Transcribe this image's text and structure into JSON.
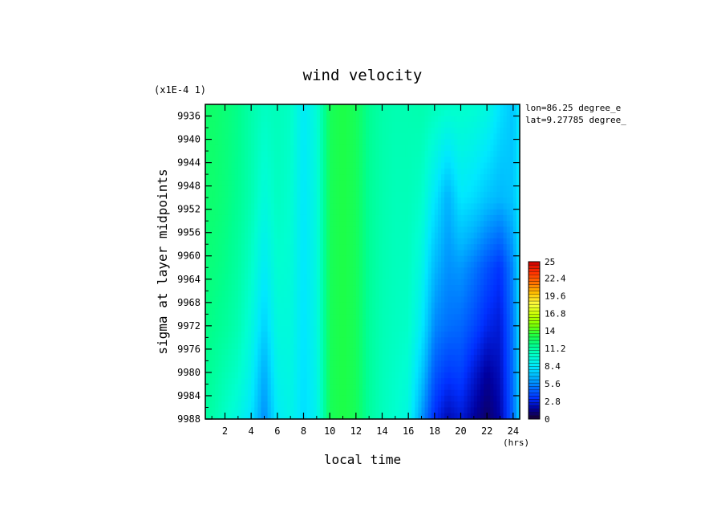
{
  "chart_data": {
    "type": "heatmap",
    "title": "wind velocity",
    "xlabel": "local time",
    "ylabel": "sigma at layer midpoints",
    "x_unit": "(hrs)",
    "y_scale_note": "(x1E-4 1)",
    "annotation_lines": [
      "lon=86.25 degree_e",
      "lat=9.27785 degree_"
    ],
    "xlim": [
      0.5,
      24.5
    ],
    "ylim": [
      9988,
      9934
    ],
    "x_ticks": [
      2,
      4,
      6,
      8,
      10,
      12,
      14,
      16,
      18,
      20,
      22,
      24
    ],
    "x_tick_labels": [
      "2",
      "4",
      "6",
      "8",
      "10",
      "12",
      "14",
      "16",
      "18",
      "20",
      "22",
      "24"
    ],
    "y_ticks": [
      9936,
      9940,
      9944,
      9948,
      9952,
      9956,
      9960,
      9964,
      9968,
      9972,
      9976,
      9980,
      9984,
      9988
    ],
    "y_tick_labels": [
      "9936",
      "9940",
      "9944",
      "9948",
      "9952",
      "9956",
      "9960",
      "9964",
      "9968",
      "9972",
      "9976",
      "9980",
      "9984",
      "9988"
    ],
    "x": [
      0.5,
      1,
      2,
      3,
      4,
      5,
      6,
      7,
      8,
      9,
      10,
      11,
      12,
      13,
      14,
      15,
      16,
      17,
      18,
      19,
      20,
      21,
      22,
      23,
      24,
      24.5
    ],
    "y": [
      9934,
      9950,
      9962,
      9972,
      9980,
      9988
    ],
    "z": [
      [
        12.4,
        12.5,
        12.2,
        11.8,
        11.0,
        10.4,
        10.6,
        10.3,
        8.6,
        9.8,
        12.8,
        13.2,
        12.8,
        11.6,
        11.0,
        10.8,
        10.8,
        10.9,
        10.6,
        10.3,
        10.2,
        10.0,
        9.6,
        8.2,
        7.2,
        8.6
      ],
      [
        12.3,
        12.4,
        12.1,
        11.6,
        10.8,
        9.6,
        10.4,
        10.0,
        8.4,
        9.6,
        12.8,
        13.2,
        12.8,
        11.5,
        10.9,
        10.6,
        10.6,
        10.2,
        8.4,
        6.6,
        8.4,
        8.0,
        7.2,
        6.8,
        7.2,
        8.6
      ],
      [
        12.1,
        12.1,
        11.8,
        11.2,
        10.2,
        8.6,
        10.0,
        9.8,
        8.3,
        9.5,
        12.8,
        13.2,
        12.8,
        11.5,
        10.8,
        10.5,
        10.4,
        9.4,
        6.8,
        5.8,
        6.0,
        5.2,
        4.2,
        3.4,
        5.6,
        8.2
      ],
      [
        11.9,
        11.8,
        11.4,
        10.8,
        9.6,
        7.6,
        9.6,
        9.6,
        8.2,
        9.4,
        12.8,
        13.2,
        12.8,
        11.4,
        10.7,
        10.4,
        10.2,
        8.6,
        5.6,
        5.0,
        4.8,
        4.0,
        3.0,
        2.6,
        5.2,
        8.0
      ],
      [
        11.6,
        11.4,
        10.8,
        10.2,
        9.0,
        6.4,
        9.2,
        9.4,
        8.1,
        9.2,
        12.8,
        13.2,
        12.8,
        11.4,
        10.6,
        10.2,
        9.8,
        7.4,
        4.4,
        3.6,
        3.8,
        2.6,
        1.6,
        2.2,
        5.0,
        7.8
      ],
      [
        11.2,
        11.0,
        10.2,
        9.4,
        8.2,
        5.6,
        8.6,
        9.2,
        8.0,
        9.0,
        12.8,
        13.2,
        12.8,
        11.3,
        10.5,
        10.0,
        9.4,
        6.0,
        3.2,
        2.0,
        2.6,
        1.6,
        0.8,
        1.8,
        4.8,
        7.6
      ]
    ],
    "colorbar": {
      "vmin": 0,
      "vmax": 25,
      "tick_labels": [
        "25",
        "22.4",
        "19.6",
        "16.8",
        "14",
        "11.2",
        "8.4",
        "5.6",
        "2.8",
        "0"
      ],
      "tick_values": [
        25,
        22.4,
        19.6,
        16.8,
        14,
        11.2,
        8.4,
        5.6,
        2.8,
        0
      ],
      "colors": [
        "#1a0030",
        "#0000a0",
        "#0030ff",
        "#0070ff",
        "#00b4ff",
        "#00e8ff",
        "#00ffd0",
        "#00ff90",
        "#20ff40",
        "#80ff00",
        "#c8ff00",
        "#ffff40",
        "#ffc000",
        "#ff7000",
        "#ff3000",
        "#d00000"
      ]
    },
    "grid": false,
    "legend": "colorbar at right"
  }
}
